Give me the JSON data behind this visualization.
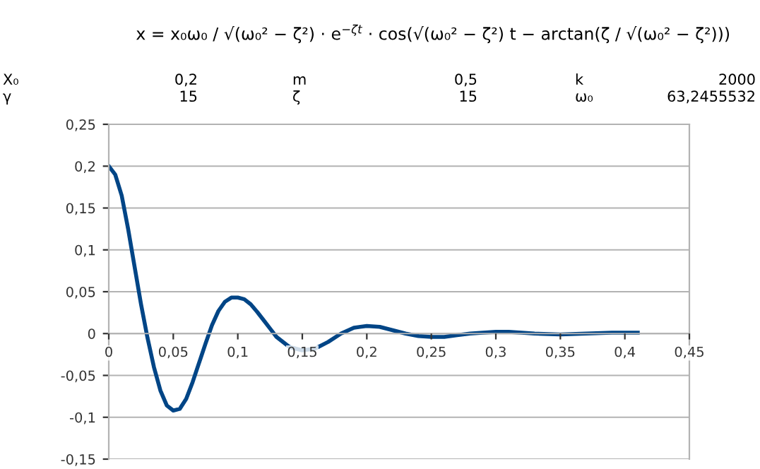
{
  "chart_data": {
    "type": "line",
    "title": "x = x₀ω₀ / √(ω₀² − ζ²) · e$^{−ζt}$ · cos(√(ω₀² − ζ²) t − arctan(ζ / √(ω₀² − ζ²)))",
    "annotations": [
      "X₀",
      "0,2",
      "m",
      "0,5",
      "k",
      "2000",
      "γ",
      "15",
      "ζ",
      "15",
      "ω₀",
      "63,2455532"
    ],
    "x": [
      0,
      0.005,
      0.01,
      0.015,
      0.02,
      0.025,
      0.03,
      0.035,
      0.04,
      0.045,
      0.05,
      0.055,
      0.06,
      0.065,
      0.07,
      0.075,
      0.08,
      0.085,
      0.09,
      0.095,
      0.1,
      0.105,
      0.11,
      0.115,
      0.12,
      0.125,
      0.13,
      0.14,
      0.15,
      0.16,
      0.17,
      0.18,
      0.19,
      0.2,
      0.21,
      0.22,
      0.23,
      0.24,
      0.25,
      0.26,
      0.27,
      0.28,
      0.29,
      0.3,
      0.31,
      0.32,
      0.33,
      0.35,
      0.37,
      0.39,
      0.41
    ],
    "series": [
      {
        "color": "#004586",
        "values": [
          0.2,
          0.19,
          0.165,
          0.125,
          0.08,
          0.035,
          -0.005,
          -0.04,
          -0.068,
          -0.086,
          -0.092,
          -0.09,
          -0.078,
          -0.058,
          -0.035,
          -0.012,
          0.01,
          0.027,
          0.038,
          0.043,
          0.043,
          0.041,
          0.035,
          0.026,
          0.016,
          0.006,
          -0.004,
          -0.016,
          -0.02,
          -0.018,
          -0.01,
          0,
          0.007,
          0.009,
          0.008,
          0.004,
          0,
          -0.003,
          -0.004,
          -0.004,
          -0.002,
          0,
          0.001,
          0.002,
          0.002,
          0.001,
          0,
          -0.001,
          0,
          0.001,
          0.001
        ]
      }
    ],
    "xlim": [
      0,
      0.45
    ],
    "xticks": [
      0,
      {
        "value": 0.05,
        "label": "0,05"
      },
      {
        "value": 0.1,
        "label": "0,1"
      },
      {
        "value": 0.15,
        "label": "0,15"
      },
      {
        "value": 0.2,
        "label": "0,2"
      },
      {
        "value": 0.25,
        "label": "0,25"
      },
      {
        "value": 0.3,
        "label": "0,3"
      },
      {
        "value": 0.35,
        "label": "0,35"
      },
      {
        "value": 0.4,
        "label": "0,4"
      },
      {
        "value": 0.45,
        "label": "0,45"
      }
    ],
    "ylim": [
      -0.15,
      0.25
    ],
    "yticks": [
      {
        "value": -0.15,
        "label": "-0,15"
      },
      {
        "value": -0.1,
        "label": "-0,1"
      },
      {
        "value": -0.05,
        "label": "-0,05"
      },
      0,
      {
        "value": 0.05,
        "label": "0,05"
      },
      {
        "value": 0.1,
        "label": "0,1"
      },
      {
        "value": 0.15,
        "label": "0,15"
      },
      {
        "value": 0.2,
        "label": "0,2"
      },
      {
        "value": 0.25,
        "label": "0,25"
      }
    ],
    "grid": "y",
    "legend": false,
    "marker": "none",
    "line_style": "solid"
  }
}
